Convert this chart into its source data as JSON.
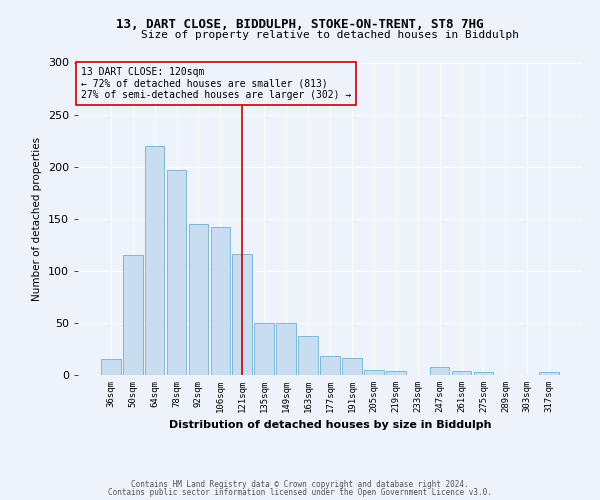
{
  "title_line1": "13, DART CLOSE, BIDDULPH, STOKE-ON-TRENT, ST8 7HG",
  "title_line2": "Size of property relative to detached houses in Biddulph",
  "xlabel": "Distribution of detached houses by size in Biddulph",
  "ylabel": "Number of detached properties",
  "categories": [
    "36sqm",
    "50sqm",
    "64sqm",
    "78sqm",
    "92sqm",
    "106sqm",
    "121sqm",
    "135sqm",
    "149sqm",
    "163sqm",
    "177sqm",
    "191sqm",
    "205sqm",
    "219sqm",
    "233sqm",
    "247sqm",
    "261sqm",
    "275sqm",
    "289sqm",
    "303sqm",
    "317sqm"
  ],
  "values": [
    15,
    115,
    220,
    197,
    145,
    142,
    116,
    50,
    50,
    37,
    18,
    16,
    5,
    4,
    0,
    8,
    4,
    3,
    0,
    0,
    3
  ],
  "bar_color": "#c9ddf0",
  "bar_edge_color": "#7db8da",
  "vline_index": 6,
  "vline_color": "#cc0000",
  "annotation_label": "13 DART CLOSE: 120sqm",
  "annotation_line1": "← 72% of detached houses are smaller (813)",
  "annotation_line2": "27% of semi-detached houses are larger (302) →",
  "annotation_box_edge_color": "#cc0000",
  "footnote1": "Contains HM Land Registry data © Crown copyright and database right 2024.",
  "footnote2": "Contains public sector information licensed under the Open Government Licence v3.0.",
  "background_color": "#eef2fa",
  "ylim": [
    0,
    300
  ],
  "yticks": [
    0,
    50,
    100,
    150,
    200,
    250,
    300
  ]
}
